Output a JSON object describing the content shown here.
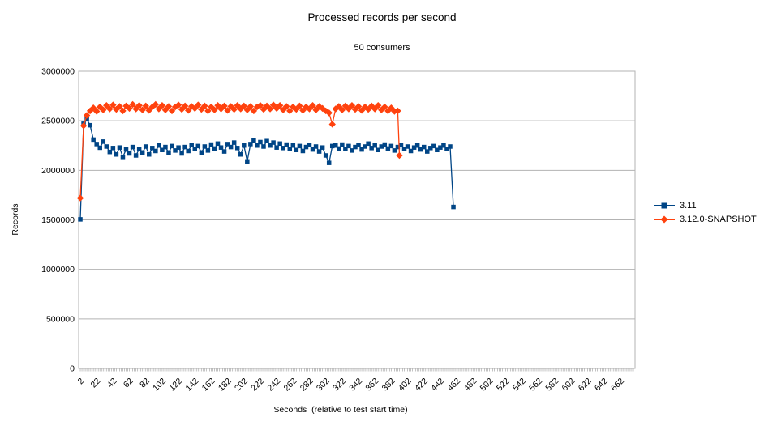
{
  "title": "Processed records per second",
  "subtitle": "50 consumers",
  "chart_data": {
    "type": "line",
    "title": "Processed records per second",
    "subtitle": "50 consumers",
    "xlabel": "Seconds  (relative to test start time)",
    "ylabel": "Records",
    "ylim": [
      0,
      3000000
    ],
    "x_axis_max": 680,
    "grid": true,
    "legend_position": "right",
    "y_tick_values": [
      0,
      500000,
      1000000,
      1500000,
      2000000,
      2500000,
      3000000
    ],
    "y_tick_labels": [
      "0",
      "500000",
      "1000000",
      "1500000",
      "2000000",
      "2500000",
      "3000000"
    ],
    "x_tick_labels": [
      2,
      22,
      42,
      62,
      82,
      102,
      122,
      142,
      162,
      182,
      202,
      222,
      242,
      262,
      282,
      302,
      322,
      342,
      362,
      382,
      402,
      422,
      442,
      462,
      482,
      502,
      522,
      542,
      562,
      582,
      602,
      622,
      642,
      662
    ],
    "series": [
      {
        "name": "3.11",
        "color": "#004586",
        "marker": "square",
        "points": [
          [
            2,
            1505000
          ],
          [
            6,
            2470000
          ],
          [
            10,
            2515000
          ],
          [
            14,
            2455000
          ],
          [
            18,
            2310000
          ],
          [
            22,
            2265000
          ],
          [
            26,
            2228000
          ],
          [
            30,
            2290000
          ],
          [
            34,
            2240000
          ],
          [
            38,
            2185000
          ],
          [
            42,
            2225000
          ],
          [
            46,
            2160000
          ],
          [
            50,
            2230000
          ],
          [
            54,
            2135000
          ],
          [
            58,
            2210000
          ],
          [
            62,
            2170000
          ],
          [
            66,
            2235000
          ],
          [
            70,
            2150000
          ],
          [
            74,
            2215000
          ],
          [
            78,
            2180000
          ],
          [
            82,
            2240000
          ],
          [
            86,
            2160000
          ],
          [
            90,
            2225000
          ],
          [
            94,
            2195000
          ],
          [
            98,
            2250000
          ],
          [
            102,
            2205000
          ],
          [
            106,
            2235000
          ],
          [
            110,
            2180000
          ],
          [
            114,
            2245000
          ],
          [
            118,
            2200000
          ],
          [
            122,
            2230000
          ],
          [
            126,
            2170000
          ],
          [
            130,
            2235000
          ],
          [
            134,
            2195000
          ],
          [
            138,
            2255000
          ],
          [
            142,
            2215000
          ],
          [
            146,
            2245000
          ],
          [
            150,
            2180000
          ],
          [
            154,
            2240000
          ],
          [
            158,
            2200000
          ],
          [
            162,
            2260000
          ],
          [
            166,
            2220000
          ],
          [
            170,
            2270000
          ],
          [
            174,
            2230000
          ],
          [
            178,
            2190000
          ],
          [
            182,
            2265000
          ],
          [
            186,
            2235000
          ],
          [
            190,
            2280000
          ],
          [
            194,
            2225000
          ],
          [
            198,
            2160000
          ],
          [
            202,
            2250000
          ],
          [
            206,
            2090000
          ],
          [
            210,
            2265000
          ],
          [
            214,
            2300000
          ],
          [
            218,
            2250000
          ],
          [
            222,
            2285000
          ],
          [
            226,
            2240000
          ],
          [
            230,
            2295000
          ],
          [
            234,
            2250000
          ],
          [
            238,
            2280000
          ],
          [
            242,
            2230000
          ],
          [
            246,
            2270000
          ],
          [
            250,
            2225000
          ],
          [
            254,
            2260000
          ],
          [
            258,
            2215000
          ],
          [
            262,
            2250000
          ],
          [
            266,
            2205000
          ],
          [
            270,
            2245000
          ],
          [
            274,
            2195000
          ],
          [
            278,
            2235000
          ],
          [
            282,
            2255000
          ],
          [
            286,
            2210000
          ],
          [
            290,
            2240000
          ],
          [
            294,
            2190000
          ],
          [
            298,
            2230000
          ],
          [
            302,
            2150000
          ],
          [
            306,
            2075000
          ],
          [
            310,
            2245000
          ],
          [
            314,
            2250000
          ],
          [
            318,
            2220000
          ],
          [
            322,
            2260000
          ],
          [
            326,
            2215000
          ],
          [
            330,
            2245000
          ],
          [
            334,
            2200000
          ],
          [
            338,
            2235000
          ],
          [
            342,
            2255000
          ],
          [
            346,
            2210000
          ],
          [
            350,
            2240000
          ],
          [
            354,
            2270000
          ],
          [
            358,
            2225000
          ],
          [
            362,
            2250000
          ],
          [
            366,
            2205000
          ],
          [
            370,
            2240000
          ],
          [
            374,
            2260000
          ],
          [
            378,
            2220000
          ],
          [
            382,
            2245000
          ],
          [
            386,
            2200000
          ],
          [
            390,
            2235000
          ],
          [
            394,
            2255000
          ],
          [
            398,
            2215000
          ],
          [
            402,
            2240000
          ],
          [
            406,
            2195000
          ],
          [
            410,
            2230000
          ],
          [
            414,
            2250000
          ],
          [
            418,
            2210000
          ],
          [
            422,
            2235000
          ],
          [
            426,
            2190000
          ],
          [
            430,
            2225000
          ],
          [
            434,
            2245000
          ],
          [
            438,
            2205000
          ],
          [
            442,
            2230000
          ],
          [
            446,
            2250000
          ],
          [
            450,
            2215000
          ],
          [
            454,
            2240000
          ],
          [
            458,
            1630000
          ]
        ]
      },
      {
        "name": "3.12.0-SNAPSHOT",
        "color": "#FF420E",
        "marker": "diamond",
        "points": [
          [
            2,
            1720000
          ],
          [
            6,
            2450000
          ],
          [
            10,
            2555000
          ],
          [
            14,
            2600000
          ],
          [
            18,
            2630000
          ],
          [
            22,
            2595000
          ],
          [
            26,
            2640000
          ],
          [
            30,
            2610000
          ],
          [
            34,
            2655000
          ],
          [
            38,
            2620000
          ],
          [
            42,
            2660000
          ],
          [
            46,
            2615000
          ],
          [
            50,
            2645000
          ],
          [
            54,
            2600000
          ],
          [
            58,
            2650000
          ],
          [
            62,
            2625000
          ],
          [
            66,
            2665000
          ],
          [
            70,
            2620000
          ],
          [
            74,
            2655000
          ],
          [
            78,
            2610000
          ],
          [
            82,
            2650000
          ],
          [
            86,
            2605000
          ],
          [
            90,
            2640000
          ],
          [
            94,
            2665000
          ],
          [
            98,
            2620000
          ],
          [
            102,
            2655000
          ],
          [
            106,
            2610000
          ],
          [
            110,
            2645000
          ],
          [
            114,
            2600000
          ],
          [
            118,
            2640000
          ],
          [
            122,
            2660000
          ],
          [
            126,
            2615000
          ],
          [
            130,
            2650000
          ],
          [
            134,
            2605000
          ],
          [
            138,
            2645000
          ],
          [
            142,
            2625000
          ],
          [
            146,
            2660000
          ],
          [
            150,
            2615000
          ],
          [
            154,
            2650000
          ],
          [
            158,
            2600000
          ],
          [
            162,
            2640000
          ],
          [
            166,
            2610000
          ],
          [
            170,
            2655000
          ],
          [
            174,
            2620000
          ],
          [
            178,
            2650000
          ],
          [
            182,
            2605000
          ],
          [
            186,
            2645000
          ],
          [
            190,
            2615000
          ],
          [
            194,
            2655000
          ],
          [
            198,
            2620000
          ],
          [
            202,
            2650000
          ],
          [
            206,
            2610000
          ],
          [
            210,
            2645000
          ],
          [
            214,
            2600000
          ],
          [
            218,
            2640000
          ],
          [
            222,
            2655000
          ],
          [
            226,
            2615000
          ],
          [
            230,
            2650000
          ],
          [
            234,
            2620000
          ],
          [
            238,
            2660000
          ],
          [
            242,
            2625000
          ],
          [
            246,
            2655000
          ],
          [
            250,
            2610000
          ],
          [
            254,
            2645000
          ],
          [
            258,
            2600000
          ],
          [
            262,
            2640000
          ],
          [
            266,
            2615000
          ],
          [
            270,
            2650000
          ],
          [
            274,
            2605000
          ],
          [
            278,
            2640000
          ],
          [
            282,
            2620000
          ],
          [
            286,
            2655000
          ],
          [
            290,
            2610000
          ],
          [
            294,
            2645000
          ],
          [
            298,
            2625000
          ],
          [
            302,
            2600000
          ],
          [
            306,
            2580000
          ],
          [
            310,
            2465000
          ],
          [
            314,
            2620000
          ],
          [
            318,
            2645000
          ],
          [
            322,
            2610000
          ],
          [
            326,
            2650000
          ],
          [
            330,
            2620000
          ],
          [
            334,
            2655000
          ],
          [
            338,
            2615000
          ],
          [
            342,
            2645000
          ],
          [
            346,
            2605000
          ],
          [
            350,
            2640000
          ],
          [
            354,
            2615000
          ],
          [
            358,
            2650000
          ],
          [
            362,
            2620000
          ],
          [
            366,
            2655000
          ],
          [
            370,
            2610000
          ],
          [
            374,
            2640000
          ],
          [
            378,
            2600000
          ],
          [
            382,
            2630000
          ],
          [
            386,
            2595000
          ],
          [
            390,
            2600000
          ],
          [
            392,
            2150000
          ]
        ]
      }
    ],
    "colors": {
      "grid": "#b3b3b3",
      "axis": "#b3b3b3",
      "text": "#000000",
      "background": "#ffffff"
    }
  }
}
